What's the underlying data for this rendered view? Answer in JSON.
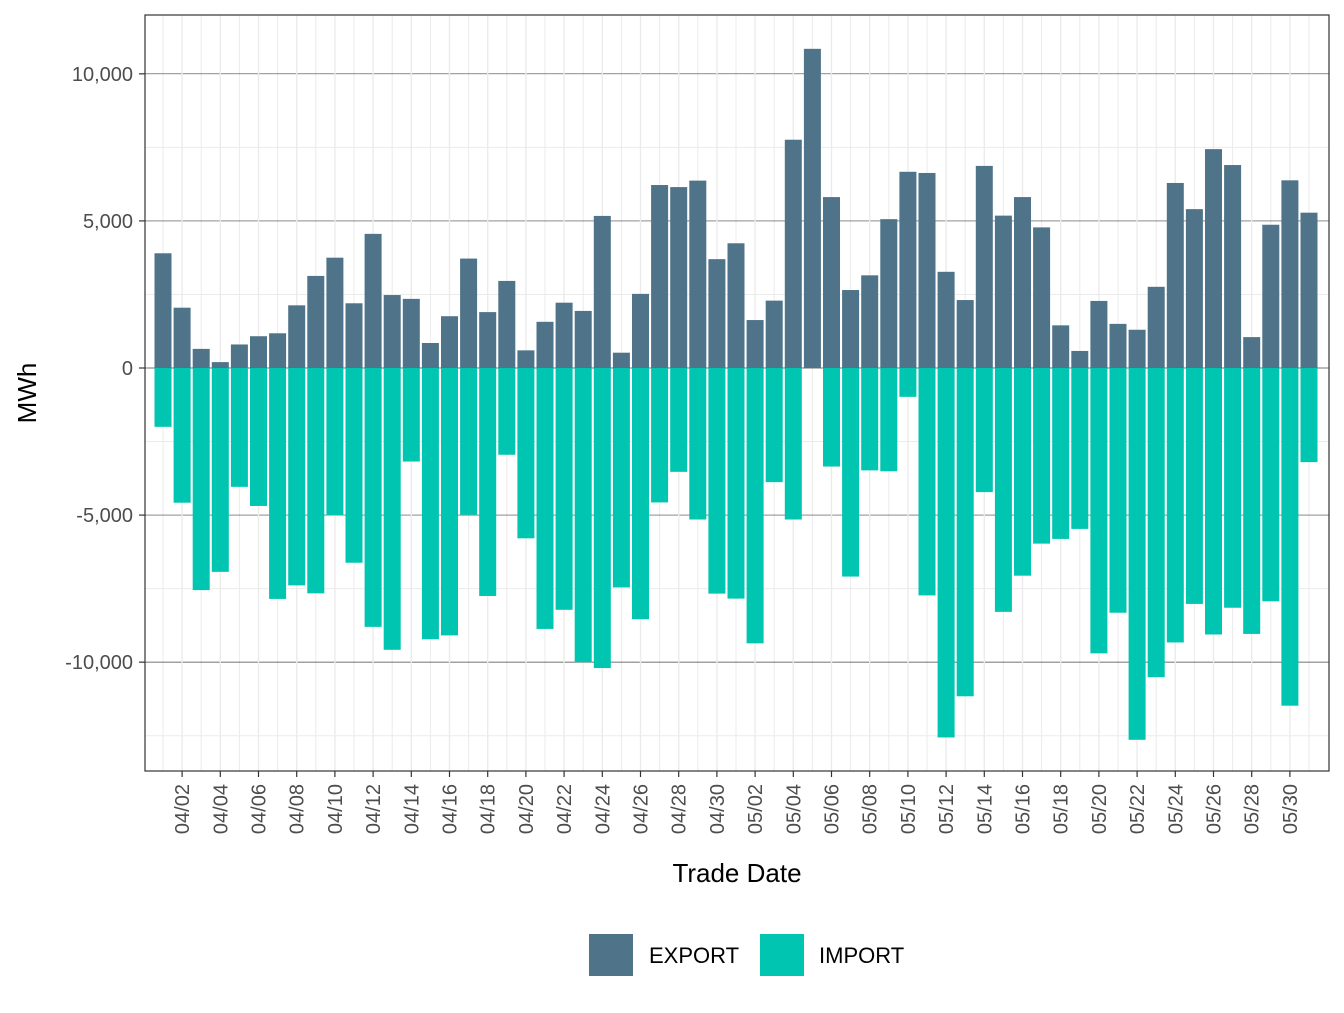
{
  "chart_data": {
    "type": "bar",
    "stacked": "diverging",
    "xlabel": "Trade Date",
    "ylabel": "MWh",
    "ylim": [
      -13700,
      12000
    ],
    "yticks": [
      -10000,
      -5000,
      0,
      5000,
      10000
    ],
    "ytick_labels": [
      "-10,000",
      "-5,000",
      "0",
      "5,000",
      "10,000"
    ],
    "grid": true,
    "legend_position": "bottom",
    "categories": [
      "04/01",
      "04/02",
      "04/03",
      "04/04",
      "04/05",
      "04/06",
      "04/07",
      "04/08",
      "04/09",
      "04/10",
      "04/11",
      "04/12",
      "04/13",
      "04/14",
      "04/15",
      "04/16",
      "04/17",
      "04/18",
      "04/19",
      "04/20",
      "04/21",
      "04/22",
      "04/23",
      "04/24",
      "04/25",
      "04/26",
      "04/27",
      "04/28",
      "04/29",
      "04/30",
      "05/01",
      "05/02",
      "05/03",
      "05/04",
      "05/05",
      "05/06",
      "05/07",
      "05/08",
      "05/09",
      "05/10",
      "05/11",
      "05/12",
      "05/13",
      "05/14",
      "05/15",
      "05/16",
      "05/17",
      "05/18",
      "05/19",
      "05/20",
      "05/21",
      "05/22",
      "05/23",
      "05/24",
      "05/25",
      "05/26",
      "05/27",
      "05/28",
      "05/29",
      "05/30",
      "05/31"
    ],
    "tick_labels": [
      "04/02",
      "04/04",
      "04/06",
      "04/08",
      "04/10",
      "04/12",
      "04/14",
      "04/16",
      "04/18",
      "04/20",
      "04/22",
      "04/24",
      "04/26",
      "04/28",
      "04/30",
      "05/02",
      "05/04",
      "05/06",
      "05/08",
      "05/10",
      "05/12",
      "05/14",
      "05/16",
      "05/18",
      "05/20",
      "05/22",
      "05/24",
      "05/26",
      "05/28",
      "05/30"
    ],
    "series": [
      {
        "name": "EXPORT",
        "color": "#4f7388",
        "values": [
          3900,
          2050,
          650,
          200,
          800,
          1080,
          1180,
          2130,
          3130,
          3750,
          2200,
          4560,
          2480,
          2350,
          850,
          1760,
          3720,
          1900,
          2960,
          600,
          1570,
          2220,
          1940,
          5170,
          520,
          2520,
          6220,
          6150,
          6370,
          3700,
          4240,
          1630,
          2290,
          7760,
          10850,
          5810,
          2650,
          3150,
          5060,
          6670,
          6630,
          3270,
          2310,
          6870,
          5180,
          5810,
          4780,
          1450,
          580,
          2280,
          1500,
          1300,
          2760,
          6290,
          5400,
          7440,
          6900,
          1050,
          4870,
          6380,
          5280
        ]
      },
      {
        "name": "IMPORT",
        "color": "#00c5b0",
        "values": [
          -2000,
          -4580,
          -7550,
          -6930,
          -4040,
          -4690,
          -7850,
          -7390,
          -7660,
          -5010,
          -6620,
          -8800,
          -9580,
          -3180,
          -9220,
          -9090,
          -4990,
          -7750,
          -2950,
          -5790,
          -8870,
          -8220,
          -10000,
          -10200,
          -7460,
          -8540,
          -4570,
          -3530,
          -5150,
          -7670,
          -7840,
          -9360,
          -3880,
          -5150,
          0,
          -3350,
          -7090,
          -3480,
          -3510,
          -980,
          -7730,
          -12560,
          -11160,
          -4220,
          -8290,
          -7060,
          -5970,
          -5810,
          -5470,
          -9700,
          -8320,
          -12640,
          -10510,
          -9330,
          -8020,
          -9060,
          -8150,
          -9040,
          -7930,
          -11480,
          -3200
        ]
      }
    ]
  }
}
